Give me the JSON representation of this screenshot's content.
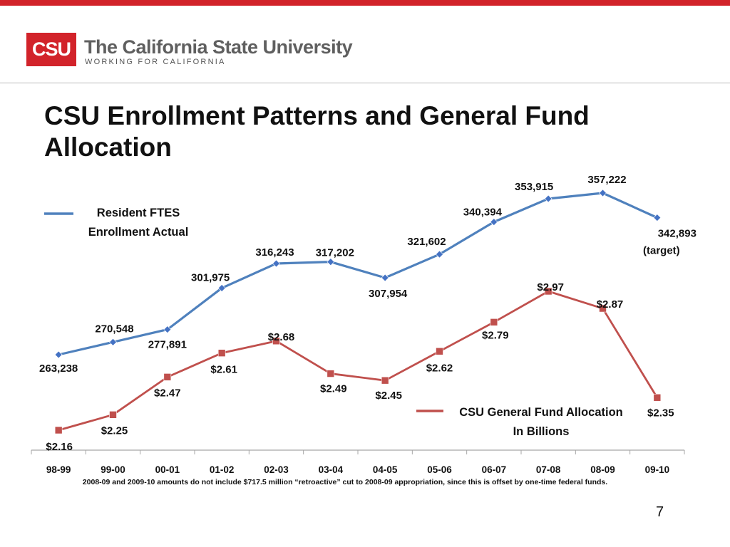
{
  "header": {
    "logo_text": "CSU",
    "org_name": "The California State University",
    "tagline": "WORKING FOR CALIFORNIA"
  },
  "slide": {
    "title": "CSU Enrollment Patterns and General Fund Allocation",
    "footnote": "2008-09 and 2009-10 amounts do not include $717.5 million “retroactive” cut to 2008-09 appropriation, since this is offset by one-time federal funds.",
    "page_number": "7"
  },
  "colors": {
    "brand_red": "#d2232a",
    "enrollment_line": "#4f81bd",
    "enrollment_marker": "#4472c4",
    "fund_line": "#c0504d",
    "fund_marker": "#c0504d"
  },
  "chart_data": {
    "type": "line",
    "title": "",
    "categories": [
      "98-99",
      "99-00",
      "00-01",
      "01-02",
      "02-03",
      "03-04",
      "04-05",
      "05-06",
      "06-07",
      "07-08",
      "08-09",
      "09-10"
    ],
    "series": [
      {
        "name": "Resident FTES Enrollment Actual",
        "legend_lines": [
          "Resident FTES",
          "Enrollment Actual"
        ],
        "values": [
          263238,
          270548,
          277891,
          301975,
          316243,
          317202,
          307954,
          321602,
          340394,
          353915,
          357222,
          342893
        ],
        "labels": [
          "263,238",
          "270,548",
          "277,891",
          "301,975",
          "316,243",
          "317,202",
          "307,954",
          "321,602",
          "340,394",
          "353,915",
          "357,222",
          "342,893"
        ],
        "last_point_note": "(target)",
        "marker": "diamond"
      },
      {
        "name": "CSU General Fund Allocation In Billions",
        "legend_lines": [
          "CSU General Fund Allocation",
          "In Billions"
        ],
        "values": [
          2.16,
          2.25,
          2.47,
          2.61,
          2.68,
          2.49,
          2.45,
          2.62,
          2.79,
          2.97,
          2.87,
          2.35
        ],
        "labels": [
          "$2.16",
          "$2.25",
          "$2.47",
          "$2.61",
          "$2.68",
          "$2.49",
          "$2.45",
          "$2.62",
          "$2.79",
          "$2.97",
          "$2.87",
          "$2.35"
        ],
        "marker": "square"
      }
    ],
    "xlabel": "",
    "ylabel": "",
    "grid": false,
    "legend": "inline"
  }
}
